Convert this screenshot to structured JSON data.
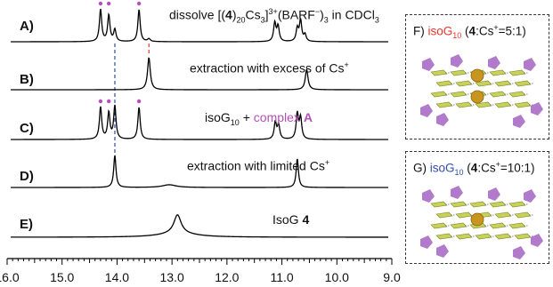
{
  "colors": {
    "red": "#e8342c",
    "blue": "#2f4fa8",
    "magenta": "#b54fb8",
    "trace": "#000000",
    "guanine": "#c8d25a",
    "sugar": "#a86cc4",
    "cesium": "#c8961e"
  },
  "labels": {
    "A": {
      "tag": "A)",
      "pre": "dissolve [(",
      "bold": "4",
      "mid": ")",
      "sub1": "20",
      "mid2": "Cs",
      "sub2": "3",
      "mid3": "]",
      "sup1": "3+",
      "mid4": "(BARF",
      "sup2": "−",
      "mid5": ")",
      "sub3": "3",
      "post": " in CDCl",
      "sub4": "3"
    },
    "B": {
      "tag": "B)",
      "text": "extraction with excess of Cs",
      "sup": "+"
    },
    "C": {
      "tag": "C)",
      "pre": "isoG",
      "sub": "10",
      "plus": " + ",
      "complex": "complex ",
      "complex_bold": "A"
    },
    "D": {
      "tag": "D)",
      "text": "extraction with limited Cs",
      "sup": "+"
    },
    "E": {
      "tag": "E)",
      "pre": "IsoG ",
      "bold": "4"
    }
  },
  "panels": {
    "F": {
      "tag": "F)",
      "name": "isoG",
      "sub": "10",
      "ratio_pre": " (",
      "ratio_bold": "4",
      "ratio_post": ":Cs",
      "ratio_sup": "+",
      "ratio_end": "=5:1)"
    },
    "G": {
      "tag": "G)",
      "name": "isoG",
      "sub": "10",
      "ratio_pre": " (",
      "ratio_bold": "4",
      "ratio_post": ":Cs",
      "ratio_sup": "+",
      "ratio_end": "=10:1)"
    }
  },
  "chart_data": {
    "type": "line",
    "xlim": [
      16.0,
      9.0
    ],
    "x_ticks": [
      "16.0",
      "15.0",
      "14.0",
      "13.0",
      "12.0",
      "11.0",
      "10.0",
      "9.0"
    ],
    "x_reversed": true,
    "series": [
      {
        "label": "A",
        "peaks": [
          [
            14.3,
            0.95,
            0.025
          ],
          [
            14.15,
            0.78,
            0.025
          ],
          [
            14.04,
            0.35,
            0.025
          ],
          [
            13.6,
            0.95,
            0.025
          ],
          [
            13.42,
            0.08,
            0.03
          ],
          [
            11.13,
            0.55,
            0.025
          ],
          [
            11.07,
            0.45,
            0.025
          ],
          [
            10.72,
            0.38,
            0.025
          ],
          [
            10.66,
            0.62,
            0.025
          ],
          [
            10.58,
            0.2,
            0.025
          ]
        ],
        "dots": [
          14.3,
          14.15,
          13.6
        ]
      },
      {
        "label": "B",
        "peaks": [
          [
            13.42,
            0.95,
            0.03
          ],
          [
            10.55,
            0.6,
            0.03
          ]
        ],
        "dots": []
      },
      {
        "label": "C",
        "peaks": [
          [
            14.3,
            0.95,
            0.025
          ],
          [
            14.15,
            0.78,
            0.025
          ],
          [
            14.04,
            0.98,
            0.025
          ],
          [
            13.6,
            0.95,
            0.025
          ],
          [
            11.12,
            0.5,
            0.025
          ],
          [
            11.06,
            0.42,
            0.025
          ],
          [
            10.72,
            0.75,
            0.025
          ],
          [
            10.66,
            0.62,
            0.025
          ]
        ],
        "dots": [
          14.3,
          14.15,
          13.6
        ]
      },
      {
        "label": "D",
        "peaks": [
          [
            14.04,
            0.95,
            0.025
          ],
          [
            13.05,
            0.08,
            0.15
          ],
          [
            10.72,
            0.85,
            0.025
          ]
        ],
        "dots": []
      },
      {
        "label": "E",
        "peaks": [
          [
            12.9,
            0.75,
            0.08
          ],
          [
            12.9,
            0.15,
            0.4
          ]
        ],
        "dots": []
      }
    ],
    "guides": [
      {
        "x": 14.04,
        "color": "blue",
        "from_trace": "A",
        "to_trace": "D"
      },
      {
        "x": 13.42,
        "color": "red",
        "from_trace": "A",
        "to_trace": "B"
      }
    ]
  }
}
